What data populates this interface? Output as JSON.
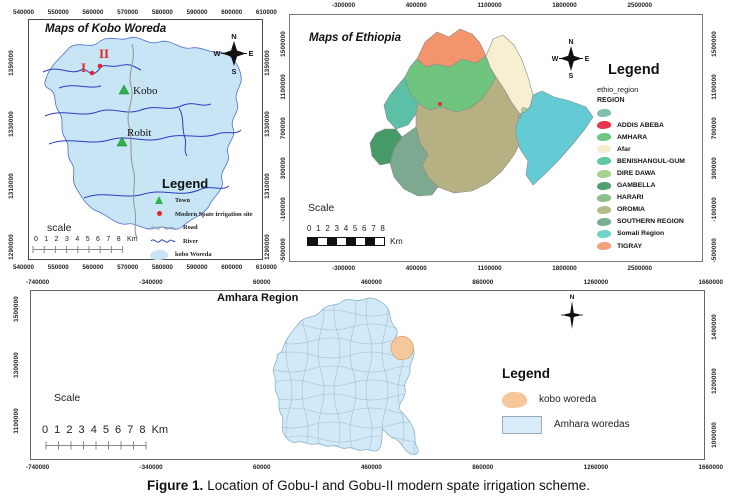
{
  "figure_caption": {
    "label": "Figure 1.",
    "text": "Location of Gobu-I and Gobu-II modern spate irrigation scheme."
  },
  "compass": {
    "n": "N",
    "e": "E",
    "s": "S",
    "w": "W"
  },
  "kobo_map": {
    "title": "Maps of Kobo Woreda",
    "x_ticks": [
      "540000",
      "550000",
      "560000",
      "570000",
      "580000",
      "590000",
      "600000",
      "610000"
    ],
    "y_ticks": [
      "1350000",
      "1330000",
      "1310000",
      "1290000"
    ],
    "site_marker_1": "I",
    "site_marker_2": "II",
    "towns": {
      "kobo": "Kobo",
      "robit": "Robit"
    },
    "legend": {
      "title": "Legend",
      "items": [
        {
          "label": "Town"
        },
        {
          "label": "Modern Spate irrigation site"
        },
        {
          "label": "Road"
        },
        {
          "label": "River"
        },
        {
          "label": "kobo Woreda"
        }
      ]
    },
    "scale": {
      "label": "scale",
      "numbers": "0 1 2 3 4 5 6 7 8 Km"
    }
  },
  "ethiopia_map": {
    "title": "Maps of Ethiopia",
    "x_ticks": [
      "-300000",
      "400000",
      "1100000",
      "1800000",
      "2500000"
    ],
    "y_ticks": [
      "1500000",
      "1100000",
      "700000",
      "300000",
      "-100000",
      "-500000"
    ],
    "legend": {
      "title": "Legend",
      "layer_name": "ethio_region",
      "field_name": "REGION",
      "items": [
        {
          "label": "",
          "color": "#7EC0AB"
        },
        {
          "label": "ADDIS ABEBA",
          "color": "#E83548"
        },
        {
          "label": "AMHARA",
          "color": "#6EC77F"
        },
        {
          "label": "Afar",
          "color": "#F6ECCE"
        },
        {
          "label": "BENISHANGUL-GUM",
          "color": "#60C9A3"
        },
        {
          "label": "DIRE DAWA",
          "color": "#A6D38D"
        },
        {
          "label": "GAMBELLA",
          "color": "#4FA26F"
        },
        {
          "label": "HARARI",
          "color": "#8DBE8B"
        },
        {
          "label": "OROMIA",
          "color": "#B4BB88"
        },
        {
          "label": "SOUTHERN REGION",
          "color": "#78AF93"
        },
        {
          "label": "Somali Region",
          "color": "#6FD3C9"
        },
        {
          "label": "TIGRAY",
          "color": "#F2A078"
        }
      ]
    },
    "scale": {
      "label": "Scale",
      "numbers": "0 1 2 3 4 5 6 7 8",
      "unit": "Km"
    }
  },
  "amhara_map": {
    "title": "Amhara Region",
    "x_ticks": [
      "-740000",
      "-340000",
      "60000",
      "460000",
      "860000",
      "1260000",
      "1660000"
    ],
    "y_ticks_left": [
      "1500000",
      "1300000",
      "1100000"
    ],
    "y_ticks_right": [
      "1400000",
      "1200000",
      "1000000"
    ],
    "legend": {
      "title": "Legend",
      "items": [
        {
          "label": "kobo woreda",
          "color": "#F6C79B"
        },
        {
          "label": "Amhara woredas",
          "color": "#D8ECFA"
        }
      ]
    },
    "scale": {
      "label": "Scale",
      "numbers": "0 1 2 3 4 5 6 7 8 Km"
    }
  },
  "map_colors": {
    "woreda_fill": "#C8E5F6",
    "river": "#2B3EBF",
    "road": "#999999",
    "town_marker": "#2EB34A",
    "site_marker": "#E42528",
    "amhara_fill": "#D2E9F8",
    "kobo_highlight": "#F6C79B"
  }
}
